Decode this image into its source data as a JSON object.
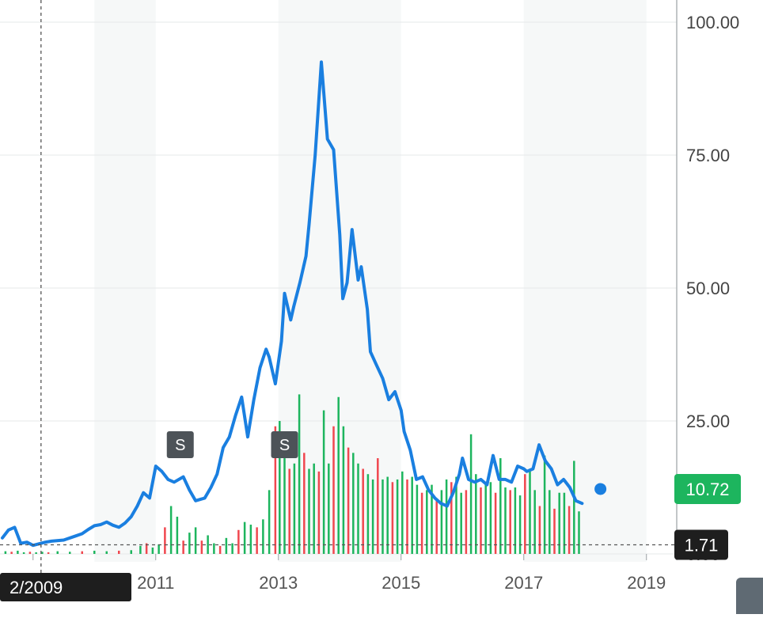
{
  "chart_data": {
    "type": "line",
    "y_ticks": [
      "100.00",
      "75.00",
      "50.00",
      "25.00",
      "0.00"
    ],
    "x_ticks": [
      "2011",
      "2013",
      "2015",
      "2017",
      "2019"
    ],
    "ylim": [
      0,
      100
    ],
    "xlim": [
      2008.5,
      2019.4
    ],
    "grid": true,
    "shaded_bands": [
      [
        2010.0,
        2011.0
      ],
      [
        2013.0,
        2015.0
      ],
      [
        2017.0,
        2019.0
      ]
    ],
    "crosshair": {
      "x_label": "2/2009",
      "y_label": "1.71",
      "x": 2009.13,
      "y": 1.71
    },
    "last_price": {
      "label": "10.72",
      "value": 10.72,
      "color": "#1db55e"
    },
    "split_markers": [
      {
        "label": "S",
        "x": 2011.4
      },
      {
        "label": "S",
        "x": 2013.1
      }
    ],
    "colors": {
      "line": "#1a7fe0",
      "volume_up": "#1db55e",
      "volume_down": "#f0474f",
      "band": "#f6f8f8",
      "badge": "#4d5358",
      "crosshair_tag": "#1e1e1e"
    },
    "series": [
      {
        "x": [
          2008.5,
          2008.6,
          2008.7,
          2008.8,
          2008.9,
          2009.0,
          2009.1,
          2009.2,
          2009.3,
          2009.5,
          2009.7,
          2009.8,
          2009.9,
          2010.0,
          2010.1,
          2010.2,
          2010.3,
          2010.4,
          2010.5,
          2010.6,
          2010.7,
          2010.8,
          2010.9,
          2011.0,
          2011.1,
          2011.2,
          2011.3,
          2011.45,
          2011.55,
          2011.65,
          2011.8,
          2011.9,
          2012.0,
          2012.1,
          2012.2,
          2012.3,
          2012.4,
          2012.5,
          2012.6,
          2012.7,
          2012.8,
          2012.85,
          2012.95,
          2013.05,
          2013.1,
          2013.2,
          2013.25,
          2013.35,
          2013.45,
          2013.5,
          2013.6,
          2013.7,
          2013.8,
          2013.9,
          2014.0,
          2014.05,
          2014.12,
          2014.2,
          2014.3,
          2014.35,
          2014.45,
          2014.5,
          2014.6,
          2014.7,
          2014.8,
          2014.9,
          2015.0,
          2015.05,
          2015.15,
          2015.25,
          2015.35,
          2015.45,
          2015.55,
          2015.65,
          2015.75,
          2015.85,
          2015.95,
          2016.0,
          2016.1,
          2016.2,
          2016.3,
          2016.4,
          2016.5,
          2016.6,
          2016.7,
          2016.8,
          2016.9,
          2017.0,
          2017.05,
          2017.15,
          2017.25,
          2017.35,
          2017.45,
          2017.55,
          2017.65,
          2017.75,
          2017.85,
          2017.95
        ],
        "values": [
          3.0,
          4.5,
          5.0,
          2.0,
          2.2,
          1.6,
          1.9,
          2.2,
          2.4,
          2.6,
          3.4,
          3.8,
          4.6,
          5.3,
          5.5,
          6.0,
          5.4,
          5.0,
          5.8,
          7.0,
          9.0,
          11.5,
          10.5,
          16.5,
          15.5,
          14.0,
          13.5,
          14.5,
          12.0,
          10.0,
          10.5,
          12.5,
          15.0,
          20.0,
          22.0,
          26.0,
          29.5,
          22.0,
          29.0,
          35.0,
          38.5,
          37.0,
          32.0,
          40.0,
          49.0,
          44.0,
          46.5,
          51.0,
          56.0,
          62.0,
          75.0,
          92.5,
          78.0,
          76.0,
          60.0,
          48.0,
          51.0,
          61.0,
          51.5,
          54.0,
          46.0,
          38.0,
          35.5,
          33.0,
          29.0,
          30.5,
          27.0,
          23.0,
          19.5,
          14.0,
          14.5,
          12.0,
          10.5,
          9.5,
          9.0,
          11.5,
          15.0,
          18.0,
          14.0,
          13.5,
          14.0,
          13.0,
          18.5,
          14.0,
          14.0,
          13.5,
          16.5,
          16.0,
          15.5,
          16.0,
          20.5,
          17.5,
          16.0,
          13.0,
          14.0,
          12.5,
          10.0,
          9.5
        ]
      }
    ],
    "volume_estimated": {
      "x": [
        2008.55,
        2008.65,
        2008.75,
        2008.85,
        2008.95,
        2009.05,
        2009.15,
        2009.25,
        2009.4,
        2009.6,
        2009.8,
        2010.0,
        2010.2,
        2010.4,
        2010.6,
        2010.75,
        2010.85,
        2010.95,
        2011.05,
        2011.15,
        2011.25,
        2011.35,
        2011.45,
        2011.55,
        2011.65,
        2011.75,
        2011.85,
        2011.95,
        2012.05,
        2012.15,
        2012.25,
        2012.35,
        2012.45,
        2012.55,
        2012.65,
        2012.75,
        2012.85,
        2012.95,
        2013.02,
        2013.1,
        2013.18,
        2013.26,
        2013.34,
        2013.42,
        2013.5,
        2013.58,
        2013.66,
        2013.74,
        2013.82,
        2013.9,
        2013.98,
        2014.06,
        2014.14,
        2014.22,
        2014.3,
        2014.38,
        2014.46,
        2014.54,
        2014.62,
        2014.7,
        2014.78,
        2014.86,
        2014.94,
        2015.02,
        2015.1,
        2015.18,
        2015.26,
        2015.34,
        2015.42,
        2015.5,
        2015.58,
        2015.66,
        2015.74,
        2015.82,
        2015.9,
        2015.98,
        2016.06,
        2016.14,
        2016.22,
        2016.3,
        2016.38,
        2016.46,
        2016.54,
        2016.62,
        2016.7,
        2016.78,
        2016.86,
        2016.94,
        2017.02,
        2017.1,
        2017.18,
        2017.26,
        2017.34,
        2017.42,
        2017.5,
        2017.58,
        2017.66,
        2017.74,
        2017.82,
        2017.9
      ],
      "values": [
        0.5,
        0.4,
        0.6,
        0.3,
        0.4,
        0.3,
        0.4,
        0.3,
        0.5,
        0.4,
        0.5,
        0.6,
        0.5,
        0.6,
        0.7,
        1.5,
        2.0,
        1.2,
        1.8,
        5.0,
        9.0,
        7.0,
        2.5,
        4.0,
        5.0,
        2.5,
        3.5,
        2.0,
        1.5,
        3.0,
        2.0,
        4.5,
        6.0,
        5.5,
        5.0,
        6.5,
        12.0,
        24.0,
        25.0,
        18.0,
        16.0,
        17.0,
        30.0,
        19.0,
        16.0,
        17.0,
        15.5,
        27.0,
        17.0,
        24.0,
        29.5,
        24.0,
        20.0,
        19.0,
        17.0,
        16.0,
        15.0,
        14.0,
        18.0,
        14.0,
        14.5,
        13.5,
        14.0,
        15.5,
        14.0,
        14.5,
        13.0,
        11.5,
        12.0,
        13.0,
        10.0,
        12.0,
        14.0,
        13.5,
        14.5,
        11.5,
        12.0,
        22.5,
        15.0,
        12.5,
        13.5,
        13.5,
        11.5,
        18.0,
        12.5,
        12.0,
        12.5,
        11.0,
        15.0,
        16.0,
        12.0,
        9.0,
        18.5,
        12.0,
        8.5,
        11.5,
        11.5,
        9.0,
        17.5,
        8.0
      ]
    }
  }
}
